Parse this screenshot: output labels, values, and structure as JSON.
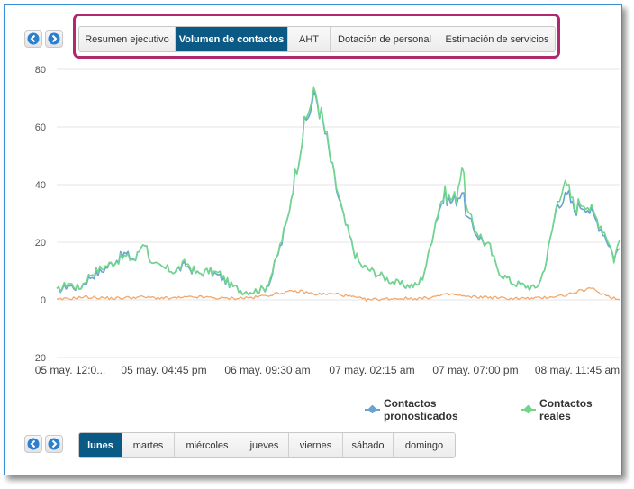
{
  "top_tabs": [
    {
      "label": "Resumen ejecutivo",
      "active": false
    },
    {
      "label": "Volumen de contactos",
      "active": true
    },
    {
      "label": "AHT",
      "active": false
    },
    {
      "label": "Dotación de personal",
      "active": false
    },
    {
      "label": "Estimación de servicios",
      "active": false
    }
  ],
  "day_tabs": [
    {
      "label": "lunes",
      "active": true
    },
    {
      "label": "martes",
      "active": false
    },
    {
      "label": "miércoles",
      "active": false
    },
    {
      "label": "jueves",
      "active": false
    },
    {
      "label": "viernes",
      "active": false
    },
    {
      "label": "sábado",
      "active": false
    },
    {
      "label": "domingo",
      "active": false
    }
  ],
  "colors": {
    "active_tab": "#0b5a86",
    "highlight_box": "#b0286e",
    "nav_arrow": "#2b7fd0",
    "series_pronosticados": "#6aa3cf",
    "series_reales": "#6fd68a",
    "series_aht": "#f2a86c"
  },
  "chart_data": {
    "type": "line",
    "y_ticks": [
      "80",
      "60",
      "40",
      "20",
      "0",
      "−20"
    ],
    "ylim": [
      -20,
      80
    ],
    "x_tick_labels": [
      "05 may. 12:0...",
      "05 may. 04:45 pm",
      "06 may. 09:30 am",
      "07 may. 02:15 am",
      "07 may. 07:00 pm",
      "08 may. 11:45 am"
    ],
    "grid": "horizontal",
    "legend_position": "bottom-right",
    "series": [
      {
        "name": "Contactos pronosticados",
        "color": "#6aa3cf",
        "points": [
          [
            0,
            3
          ],
          [
            0.02,
            5
          ],
          [
            0.04,
            4
          ],
          [
            0.06,
            8
          ],
          [
            0.08,
            10
          ],
          [
            0.1,
            13
          ],
          [
            0.12,
            16
          ],
          [
            0.14,
            14
          ],
          [
            0.155,
            21
          ],
          [
            0.17,
            12
          ],
          [
            0.19,
            11
          ],
          [
            0.21,
            10
          ],
          [
            0.23,
            12
          ],
          [
            0.25,
            9
          ],
          [
            0.27,
            10
          ],
          [
            0.29,
            8
          ],
          [
            0.31,
            5
          ],
          [
            0.33,
            3
          ],
          [
            0.35,
            3
          ],
          [
            0.37,
            4
          ],
          [
            0.38,
            7
          ],
          [
            0.39,
            14
          ],
          [
            0.4,
            20
          ],
          [
            0.41,
            28
          ],
          [
            0.42,
            40
          ],
          [
            0.43,
            50
          ],
          [
            0.44,
            60
          ],
          [
            0.45,
            66
          ],
          [
            0.46,
            71
          ],
          [
            0.47,
            64
          ],
          [
            0.48,
            55
          ],
          [
            0.49,
            45
          ],
          [
            0.5,
            36
          ],
          [
            0.51,
            28
          ],
          [
            0.52,
            22
          ],
          [
            0.53,
            16
          ],
          [
            0.54,
            12
          ],
          [
            0.56,
            10
          ],
          [
            0.58,
            8
          ],
          [
            0.6,
            6
          ],
          [
            0.62,
            5
          ],
          [
            0.64,
            5
          ],
          [
            0.65,
            8
          ],
          [
            0.66,
            15
          ],
          [
            0.67,
            25
          ],
          [
            0.68,
            32
          ],
          [
            0.69,
            36
          ],
          [
            0.7,
            34
          ],
          [
            0.71,
            35
          ],
          [
            0.72,
            38
          ],
          [
            0.73,
            28
          ],
          [
            0.74,
            25
          ],
          [
            0.75,
            22
          ],
          [
            0.76,
            20
          ],
          [
            0.77,
            18
          ],
          [
            0.78,
            12
          ],
          [
            0.79,
            9
          ],
          [
            0.81,
            6
          ],
          [
            0.83,
            5
          ],
          [
            0.85,
            4
          ],
          [
            0.86,
            7
          ],
          [
            0.87,
            14
          ],
          [
            0.88,
            24
          ],
          [
            0.89,
            34
          ],
          [
            0.9,
            35
          ],
          [
            0.91,
            36
          ],
          [
            0.92,
            31
          ],
          [
            0.93,
            33
          ],
          [
            0.94,
            33
          ],
          [
            0.95,
            30
          ],
          [
            0.96,
            27
          ],
          [
            0.97,
            24
          ],
          [
            0.98,
            20
          ],
          [
            0.99,
            15
          ],
          [
            1,
            18
          ]
        ]
      },
      {
        "name": "Contactos reales",
        "color": "#6fd68a",
        "points": [
          [
            0,
            3
          ],
          [
            0.02,
            6
          ],
          [
            0.04,
            4
          ],
          [
            0.06,
            9
          ],
          [
            0.08,
            11
          ],
          [
            0.1,
            13
          ],
          [
            0.12,
            15
          ],
          [
            0.14,
            14
          ],
          [
            0.155,
            21
          ],
          [
            0.17,
            12
          ],
          [
            0.19,
            11
          ],
          [
            0.21,
            10
          ],
          [
            0.23,
            13
          ],
          [
            0.25,
            9
          ],
          [
            0.27,
            10
          ],
          [
            0.29,
            9
          ],
          [
            0.31,
            5
          ],
          [
            0.33,
            3
          ],
          [
            0.35,
            3
          ],
          [
            0.37,
            4
          ],
          [
            0.38,
            8
          ],
          [
            0.39,
            14
          ],
          [
            0.4,
            21
          ],
          [
            0.41,
            28
          ],
          [
            0.42,
            40
          ],
          [
            0.43,
            50
          ],
          [
            0.44,
            60
          ],
          [
            0.45,
            68
          ],
          [
            0.46,
            72
          ],
          [
            0.47,
            64
          ],
          [
            0.48,
            56
          ],
          [
            0.49,
            45
          ],
          [
            0.5,
            37
          ],
          [
            0.51,
            28
          ],
          [
            0.52,
            22
          ],
          [
            0.53,
            16
          ],
          [
            0.54,
            12
          ],
          [
            0.56,
            10
          ],
          [
            0.58,
            8
          ],
          [
            0.6,
            6
          ],
          [
            0.62,
            5
          ],
          [
            0.64,
            5
          ],
          [
            0.65,
            8
          ],
          [
            0.66,
            15
          ],
          [
            0.67,
            25
          ],
          [
            0.68,
            33
          ],
          [
            0.69,
            37
          ],
          [
            0.7,
            35
          ],
          [
            0.71,
            36
          ],
          [
            0.72,
            47
          ],
          [
            0.73,
            30
          ],
          [
            0.74,
            26
          ],
          [
            0.75,
            23
          ],
          [
            0.76,
            20
          ],
          [
            0.77,
            18
          ],
          [
            0.78,
            12
          ],
          [
            0.79,
            9
          ],
          [
            0.81,
            6
          ],
          [
            0.83,
            5
          ],
          [
            0.85,
            4
          ],
          [
            0.86,
            7
          ],
          [
            0.87,
            14
          ],
          [
            0.88,
            24
          ],
          [
            0.89,
            35
          ],
          [
            0.9,
            40
          ],
          [
            0.91,
            38
          ],
          [
            0.92,
            32
          ],
          [
            0.93,
            34
          ],
          [
            0.94,
            34
          ],
          [
            0.95,
            31
          ],
          [
            0.96,
            28
          ],
          [
            0.97,
            25
          ],
          [
            0.98,
            21
          ],
          [
            0.99,
            14
          ],
          [
            1,
            21
          ]
        ]
      },
      {
        "color": "#f2a86c",
        "points": [
          [
            0,
            0
          ],
          [
            0.05,
            1
          ],
          [
            0.1,
            0.5
          ],
          [
            0.15,
            1
          ],
          [
            0.2,
            0.5
          ],
          [
            0.25,
            1
          ],
          [
            0.3,
            0.5
          ],
          [
            0.35,
            0.8
          ],
          [
            0.4,
            2.5
          ],
          [
            0.43,
            3
          ],
          [
            0.46,
            2
          ],
          [
            0.5,
            2
          ],
          [
            0.55,
            0
          ],
          [
            0.6,
            0.5
          ],
          [
            0.65,
            0.5
          ],
          [
            0.7,
            2
          ],
          [
            0.73,
            1
          ],
          [
            0.76,
            1
          ],
          [
            0.8,
            0.5
          ],
          [
            0.85,
            0.5
          ],
          [
            0.9,
            1.5
          ],
          [
            0.93,
            3
          ],
          [
            0.95,
            4
          ],
          [
            0.97,
            2
          ],
          [
            1,
            0
          ]
        ]
      }
    ]
  }
}
